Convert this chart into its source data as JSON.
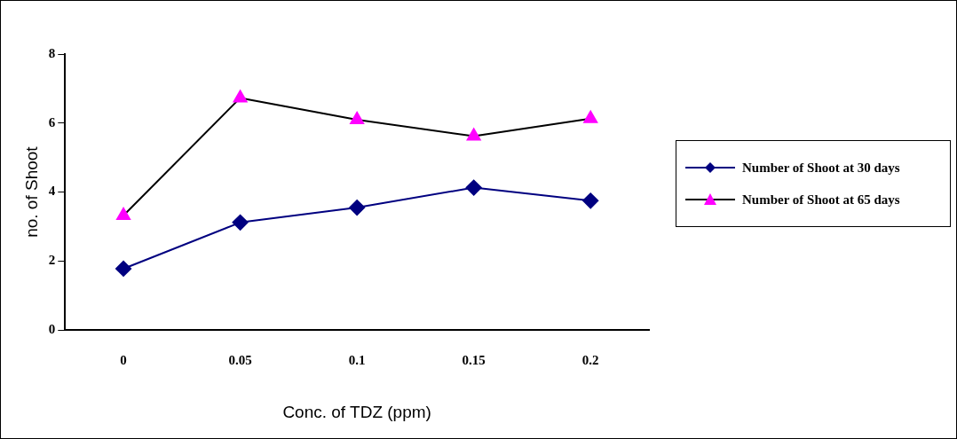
{
  "chart_data": {
    "type": "line",
    "xlabel": "Conc. of TDZ (ppm)",
    "ylabel": "no. of Shoot",
    "categories": [
      "0",
      "0.05",
      "0.1",
      "0.15",
      "0.2"
    ],
    "series": [
      {
        "name": "Number of Shoot at 30 days",
        "color": "#000080",
        "colors": [
          "#000080",
          "#000080",
          "#000080",
          "#000080",
          "#000080"
        ],
        "marker": "diamond",
        "values": [
          1.78,
          3.12,
          3.55,
          4.13,
          3.75
        ]
      },
      {
        "name": "Number of Shoot at 65 days",
        "color": "#000000",
        "colors": [
          "#ff00ff",
          "#ff00ff",
          "#ff00ff",
          "#ff00ff",
          "#ff00ff"
        ],
        "marker": "triangle",
        "values": [
          3.32,
          6.73,
          6.1,
          5.62,
          6.13
        ]
      }
    ],
    "ylim": [
      0,
      8
    ],
    "yticks": [
      0,
      2,
      4,
      6,
      8
    ],
    "grid": false,
    "legend": "right"
  }
}
